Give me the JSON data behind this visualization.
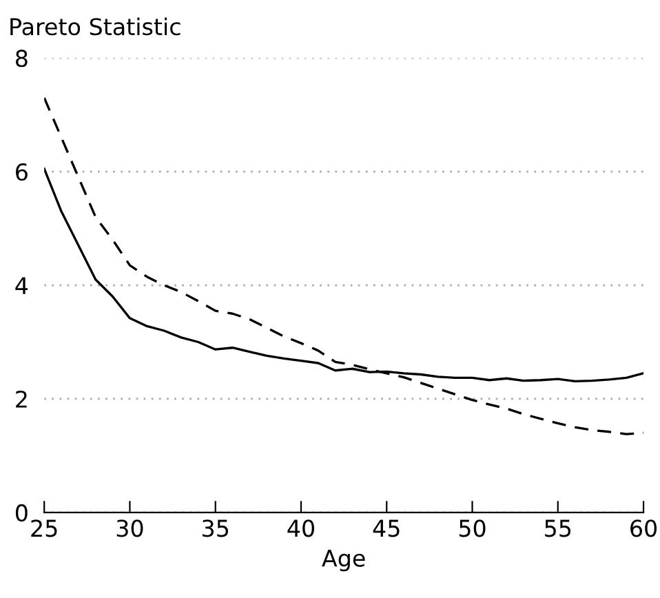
{
  "chart_data": {
    "type": "line",
    "ylabel": "Pareto Statistic",
    "xlabel": "Age",
    "x": [
      25,
      26,
      27,
      28,
      29,
      30,
      31,
      32,
      33,
      34,
      35,
      36,
      37,
      38,
      39,
      40,
      41,
      42,
      43,
      44,
      45,
      46,
      47,
      48,
      49,
      50,
      51,
      52,
      53,
      54,
      55,
      56,
      57,
      58,
      59,
      60
    ],
    "series": [
      {
        "color": "#000000",
        "line_style": "solid",
        "values": [
          6.05,
          5.3,
          4.7,
          4.1,
          3.8,
          3.42,
          3.28,
          3.2,
          3.08,
          3.0,
          2.87,
          2.9,
          2.83,
          2.76,
          2.71,
          2.67,
          2.63,
          2.5,
          2.53,
          2.47,
          2.48,
          2.45,
          2.43,
          2.39,
          2.37,
          2.37,
          2.33,
          2.36,
          2.32,
          2.33,
          2.35,
          2.31,
          2.32,
          2.34,
          2.37,
          2.45
        ]
      },
      {
        "color": "#000000",
        "line_style": "dashed",
        "values": [
          7.3,
          6.6,
          5.9,
          5.2,
          4.8,
          4.35,
          4.15,
          4.0,
          3.88,
          3.72,
          3.55,
          3.5,
          3.4,
          3.25,
          3.1,
          2.98,
          2.85,
          2.65,
          2.6,
          2.52,
          2.45,
          2.38,
          2.28,
          2.18,
          2.08,
          1.98,
          1.9,
          1.83,
          1.73,
          1.65,
          1.57,
          1.5,
          1.45,
          1.42,
          1.38,
          1.4
        ]
      }
    ],
    "xlim": [
      25,
      60
    ],
    "xticks": [
      25,
      30,
      35,
      40,
      45,
      50,
      55,
      60
    ],
    "ylim": [
      0,
      8
    ],
    "yticks": [
      0,
      2,
      4,
      6,
      8
    ],
    "grid": "y",
    "legend": false,
    "marker": "none"
  }
}
